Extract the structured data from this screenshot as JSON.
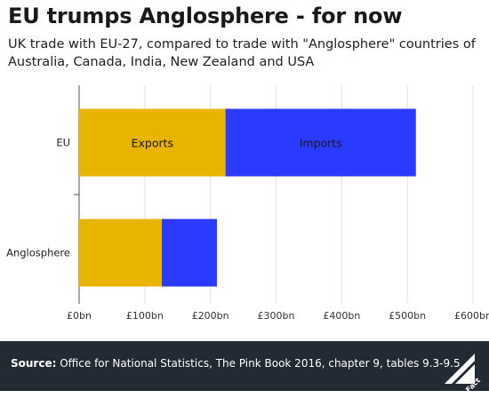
{
  "header": {
    "title": "EU trumps Anglosphere - for now",
    "subtitle": "UK trade with EU-27, compared to trade with \"Anglosphere\" countries of Australia, Canada, India, New Zealand and USA"
  },
  "chart_data": {
    "type": "bar",
    "orientation": "horizontal",
    "stacked": true,
    "categories": [
      "EU",
      "Anglosphere"
    ],
    "series": [
      {
        "name": "Exports",
        "values": [
          223,
          126
        ],
        "color": "#e8b400"
      },
      {
        "name": "Imports",
        "values": [
          290,
          84
        ],
        "color": "#2a3bff"
      }
    ],
    "xlim": [
      0,
      600
    ],
    "xticks": [
      "£0bn",
      "£100bn",
      "£200bn",
      "£300bn",
      "£400bn",
      "£500bn",
      "£600bn"
    ],
    "grid": true,
    "legend": "inline labels on EU bar"
  },
  "footer": {
    "source_label": "Source:",
    "source_text": "Office for National Statistics, The Pink Book 2016, chapter 9, tables 9.3-9.5",
    "logo_text": "Full Fact"
  }
}
